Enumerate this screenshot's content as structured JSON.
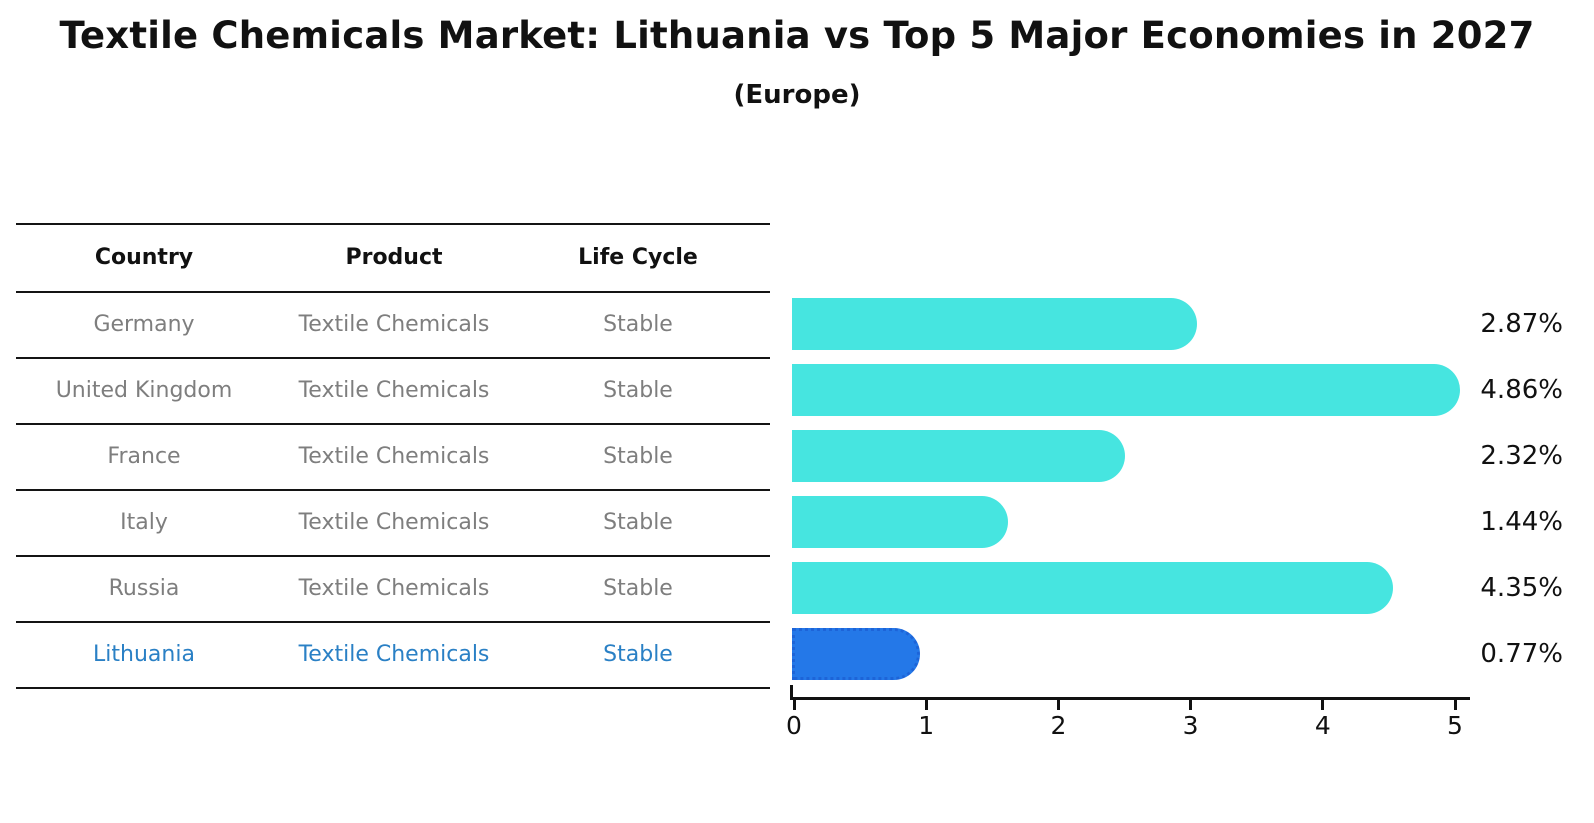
{
  "title": "Textile Chemicals Market: Lithuania vs Top 5 Major Economies in 2027",
  "subtitle": "(Europe)",
  "table": {
    "headers": [
      "Country",
      "Product",
      "Life Cycle"
    ],
    "rows": [
      [
        "Germany",
        "Textile Chemicals",
        "Stable"
      ],
      [
        "United Kingdom",
        "Textile Chemicals",
        "Stable"
      ],
      [
        "France",
        "Textile Chemicals",
        "Stable"
      ],
      [
        "Italy",
        "Textile Chemicals",
        "Stable"
      ],
      [
        "Russia",
        "Textile Chemicals",
        "Stable"
      ],
      [
        "Lithuania",
        "Textile Chemicals",
        "Stable"
      ]
    ]
  },
  "chart_data": {
    "type": "bar",
    "orientation": "horizontal",
    "title": "Textile Chemicals Market: Lithuania vs Top 5 Major Economies in 2027",
    "subtitle": "(Europe)",
    "categories": [
      "Germany",
      "United Kingdom",
      "France",
      "Italy",
      "Russia",
      "Lithuania"
    ],
    "values": [
      2.87,
      4.86,
      2.32,
      1.44,
      4.35,
      0.77
    ],
    "value_labels": [
      "2.87%",
      "4.86%",
      "2.32%",
      "1.44%",
      "4.35%",
      "0.77%"
    ],
    "unit": "%",
    "xlim": [
      0,
      5
    ],
    "x_ticks": [
      "0",
      "1",
      "2",
      "3",
      "4",
      "5"
    ],
    "grid": false,
    "legend": false,
    "highlight_index": 5,
    "highlight_category": "Lithuania"
  },
  "colors": {
    "bar": "#46e5e0",
    "highlight_bar": "#2478e8",
    "highlight_bar_edge": "#1d64d8",
    "highlight_text": "#2a80c5",
    "table_text": "#7e7e7e",
    "axis_text": "#111111",
    "background": "#ffffff"
  }
}
